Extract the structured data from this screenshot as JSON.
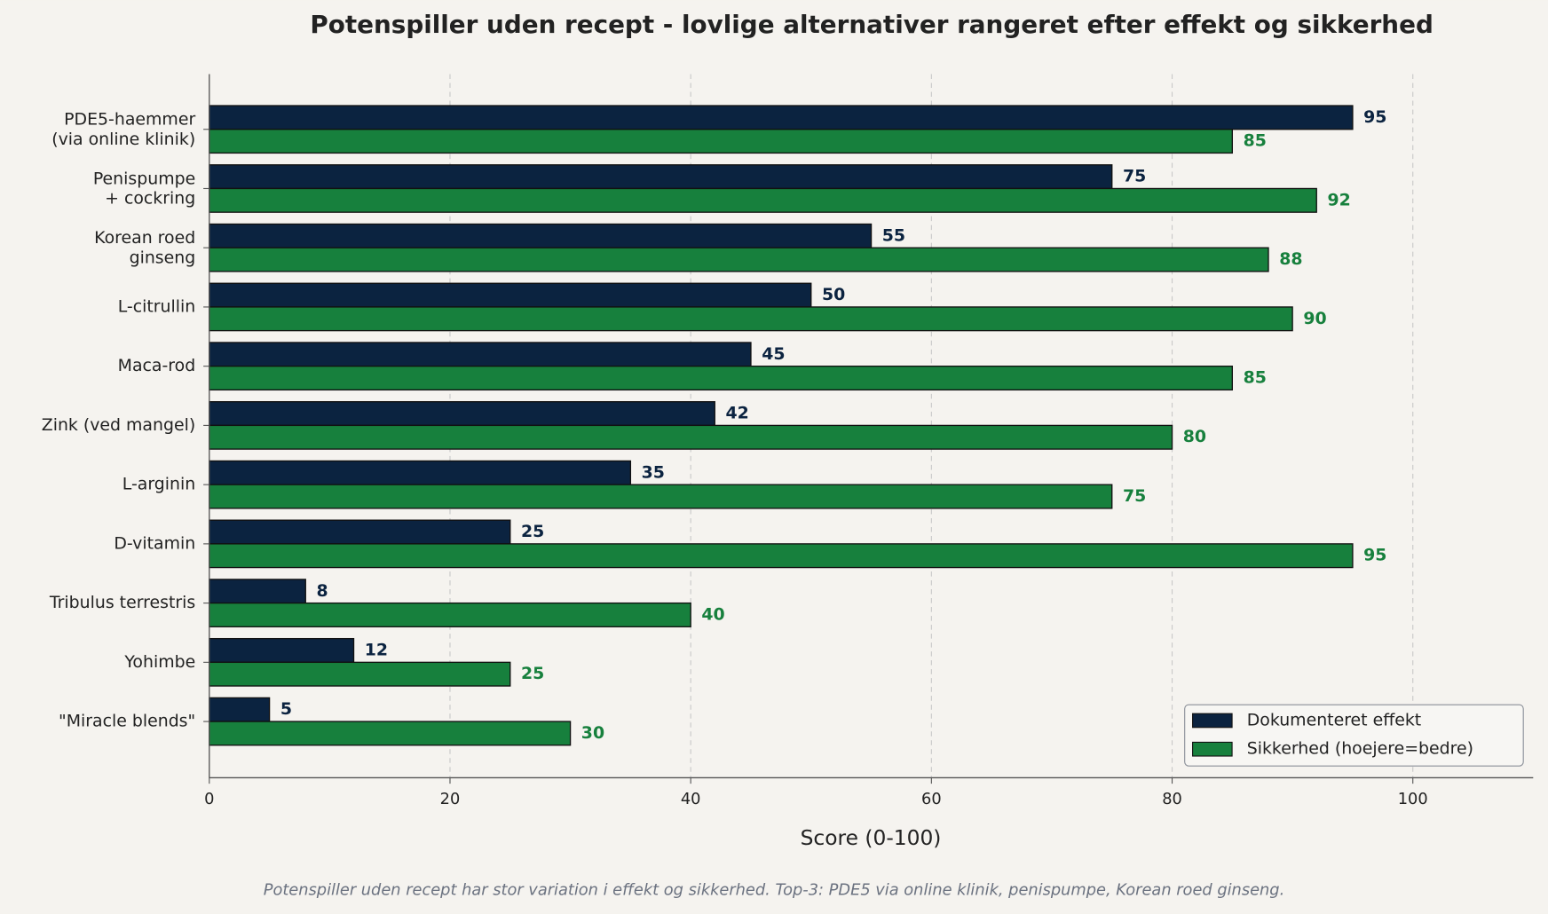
{
  "chart_data": {
    "type": "bar",
    "orientation": "horizontal",
    "title": "Potenspiller uden recept - lovlige alternativer rangeret efter effekt og sikkerhed",
    "x_label": "Score (0-100)",
    "footnote": "Potenspiller uden recept har stor variation i effekt og sikkerhed. Top-3: PDE5 via online klinik, penispumpe, Korean roed ginseng.",
    "categories": [
      "PDE5-haemmer\n(via online klinik)",
      "Penispumpe\n+ cockring",
      "Korean roed\nginseng",
      "L-citrullin",
      "Maca-rod",
      "Zink (ved mangel)",
      "L-arginin",
      "D-vitamin",
      "Tribulus terrestris",
      "Yohimbe",
      "\"Miracle blends\""
    ],
    "series": [
      {
        "name": "Dokumenteret effekt",
        "color": "#0b2340",
        "values": [
          95,
          75,
          55,
          50,
          45,
          42,
          35,
          25,
          8,
          12,
          5
        ]
      },
      {
        "name": "Sikkerhed (hoejere=bedre)",
        "color": "#17803d",
        "values": [
          85,
          92,
          88,
          90,
          85,
          80,
          75,
          95,
          40,
          25,
          30
        ]
      }
    ],
    "xlim": [
      0,
      110
    ],
    "xticks": [
      0,
      20,
      40,
      60,
      80,
      100
    ],
    "grid": true,
    "legend_position": "lower right"
  }
}
